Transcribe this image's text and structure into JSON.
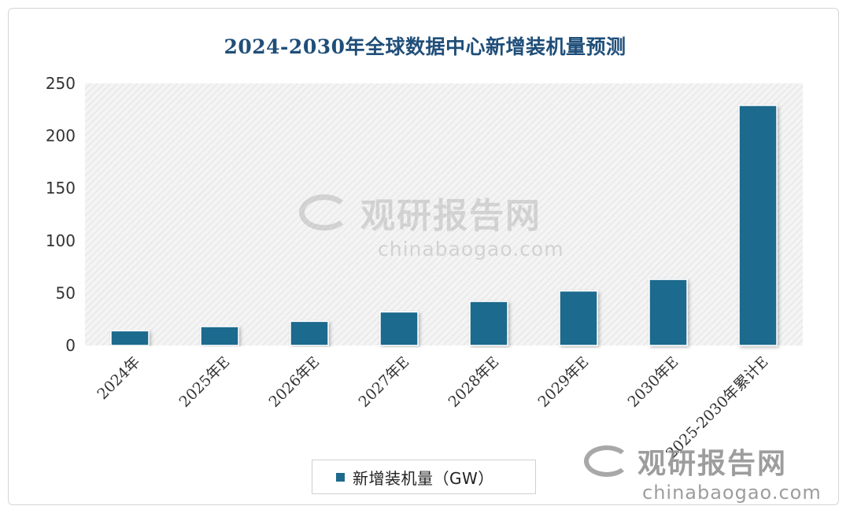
{
  "colors": {
    "bar": "#1e6a8d",
    "title": "#1f4e79",
    "axis_text": "#333333"
  },
  "watermark": {
    "brand": "观研报告网",
    "url": "chinabaogao.com"
  },
  "chart_data": {
    "type": "bar",
    "title": "2024-2030年全球数据中心新增装机量预测",
    "categories": [
      "2024年",
      "2025年E",
      "2026年E",
      "2027年E",
      "2028年E",
      "2029年E",
      "2030年E",
      "2025-2030年累计E"
    ],
    "series": [
      {
        "name": "新增装机量（GW）",
        "values": [
          14,
          18,
          23,
          32,
          42,
          52,
          63,
          229
        ]
      }
    ],
    "yticks": [
      0,
      50,
      100,
      150,
      200,
      250
    ],
    "ylim": [
      0,
      250
    ],
    "legend_position": "bottom",
    "grid": false
  }
}
